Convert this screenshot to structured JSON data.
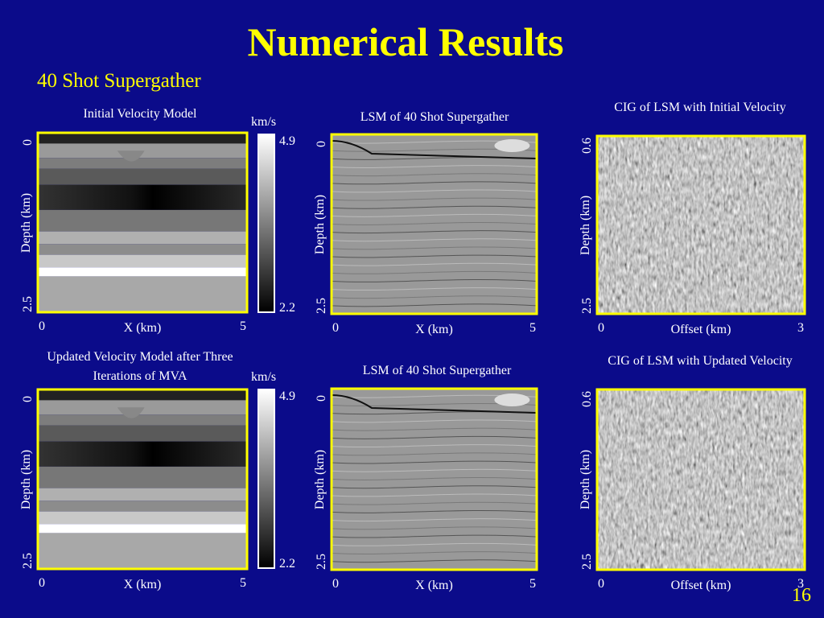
{
  "header": {
    "title": "Numerical Results",
    "subtitle": "40 Shot Supergather"
  },
  "panels": [
    {
      "title": "Initial Velocity Model",
      "y_label": "Depth (km)",
      "y_ticks": [
        "0",
        "2.5"
      ],
      "x_label": "X (km)",
      "x_ticks": [
        "0",
        "5"
      ],
      "colorbar": {
        "unit": "km/s",
        "max": "4.9",
        "min": "2.2"
      }
    },
    {
      "title": "LSM of 40 Shot Supergather",
      "y_label": "Depth (km)",
      "y_ticks": [
        "0",
        "2.5"
      ],
      "x_label": "X (km)",
      "x_ticks": [
        "0",
        "5"
      ]
    },
    {
      "title": "CIG of LSM with Initial Velocity",
      "y_label": "Depth (km)",
      "y_ticks": [
        "0.6",
        "2.5"
      ],
      "x_label": "Offset (km)",
      "x_ticks": [
        "0",
        "3"
      ]
    },
    {
      "title": "Updated Velocity Model after Three Iterations of MVA",
      "y_label": "Depth (km)",
      "y_ticks": [
        "0",
        "2.5"
      ],
      "x_label": "X (km)",
      "x_ticks": [
        "0",
        "5"
      ],
      "colorbar": {
        "unit": "km/s",
        "max": "4.9",
        "min": "2.2"
      }
    },
    {
      "title": "LSM of 40 Shot Supergather",
      "y_label": "Depth (km)",
      "y_ticks": [
        "0",
        "2.5"
      ],
      "x_label": "X (km)",
      "x_ticks": [
        "0",
        "5"
      ]
    },
    {
      "title": "CIG of LSM with Updated Velocity",
      "y_label": "Depth (km)",
      "y_ticks": [
        "0.6",
        "2.5"
      ],
      "x_label": "Offset (km)",
      "x_ticks": [
        "0",
        "3"
      ]
    }
  ],
  "footer": {
    "page_number": "16"
  }
}
